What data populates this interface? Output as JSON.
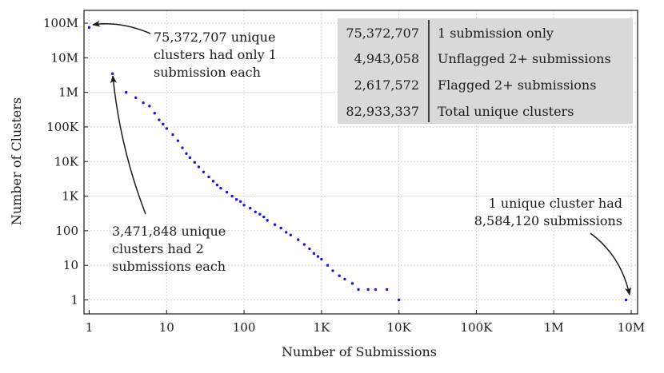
{
  "chart_data": {
    "type": "scatter",
    "xlabel": "Number of Submissions",
    "ylabel": "Number of Clusters",
    "xscale": "log",
    "yscale": "log",
    "xlim": [
      1,
      10000000
    ],
    "ylim": [
      1,
      100000000
    ],
    "grid": true,
    "marker_color": "#1515e6",
    "x_ticks": [
      {
        "value": 1,
        "label": "1"
      },
      {
        "value": 10,
        "label": "10"
      },
      {
        "value": 100,
        "label": "100"
      },
      {
        "value": 1000,
        "label": "1K"
      },
      {
        "value": 10000,
        "label": "10K"
      },
      {
        "value": 100000,
        "label": "100K"
      },
      {
        "value": 1000000,
        "label": "1M"
      },
      {
        "value": 10000000,
        "label": "10M"
      }
    ],
    "y_ticks": [
      {
        "value": 1,
        "label": "1"
      },
      {
        "value": 10,
        "label": "10"
      },
      {
        "value": 100,
        "label": "100"
      },
      {
        "value": 1000,
        "label": "1K"
      },
      {
        "value": 10000,
        "label": "10K"
      },
      {
        "value": 100000,
        "label": "100K"
      },
      {
        "value": 1000000,
        "label": "1M"
      },
      {
        "value": 10000000,
        "label": "10M"
      },
      {
        "value": 100000000,
        "label": "100M"
      }
    ],
    "series": [
      {
        "points": [
          [
            1,
            75372707
          ],
          [
            2,
            3471848
          ],
          [
            3,
            1000000
          ],
          [
            4,
            700000
          ],
          [
            5,
            500000
          ],
          [
            6,
            400000
          ],
          [
            7,
            250000
          ],
          [
            8,
            160000
          ],
          [
            9,
            120000
          ],
          [
            10,
            90000
          ],
          [
            12,
            60000
          ],
          [
            14,
            40000
          ],
          [
            16,
            25000
          ],
          [
            18,
            17000
          ],
          [
            20,
            13000
          ],
          [
            23,
            9500
          ],
          [
            26,
            7000
          ],
          [
            30,
            5000
          ],
          [
            35,
            3600
          ],
          [
            40,
            2700
          ],
          [
            45,
            2100
          ],
          [
            50,
            1700
          ],
          [
            60,
            1300
          ],
          [
            70,
            1000
          ],
          [
            80,
            800
          ],
          [
            90,
            700
          ],
          [
            100,
            550
          ],
          [
            120,
            450
          ],
          [
            140,
            350
          ],
          [
            160,
            300
          ],
          [
            180,
            250
          ],
          [
            200,
            200
          ],
          [
            250,
            150
          ],
          [
            300,
            120
          ],
          [
            350,
            90
          ],
          [
            400,
            75
          ],
          [
            500,
            55
          ],
          [
            600,
            40
          ],
          [
            700,
            30
          ],
          [
            800,
            22
          ],
          [
            900,
            18
          ],
          [
            1000,
            15
          ],
          [
            1200,
            10
          ],
          [
            1400,
            7
          ],
          [
            1700,
            5
          ],
          [
            2000,
            4
          ],
          [
            2500,
            3
          ],
          [
            3000,
            2
          ],
          [
            4000,
            2
          ],
          [
            5000,
            2
          ],
          [
            7000,
            2
          ],
          [
            10000,
            1
          ],
          [
            8584120,
            1
          ]
        ]
      }
    ],
    "annotations": [
      {
        "lines": [
          "75,372,707 unique",
          "clusters had only 1",
          "submission each"
        ]
      },
      {
        "lines": [
          "3,471,848 unique",
          "clusters had 2",
          "submissions each"
        ]
      },
      {
        "lines": [
          "1 unique cluster had",
          "8,584,120 submissions"
        ]
      }
    ],
    "summary_table": [
      {
        "value": "75,372,707",
        "label": "1 submission only"
      },
      {
        "value": "4,943,058",
        "label": "Unflagged 2+ submissions"
      },
      {
        "value": "2,617,572",
        "label": "Flagged 2+ submissions"
      },
      {
        "value": "82,933,337",
        "label": "Total unique clusters"
      }
    ]
  }
}
